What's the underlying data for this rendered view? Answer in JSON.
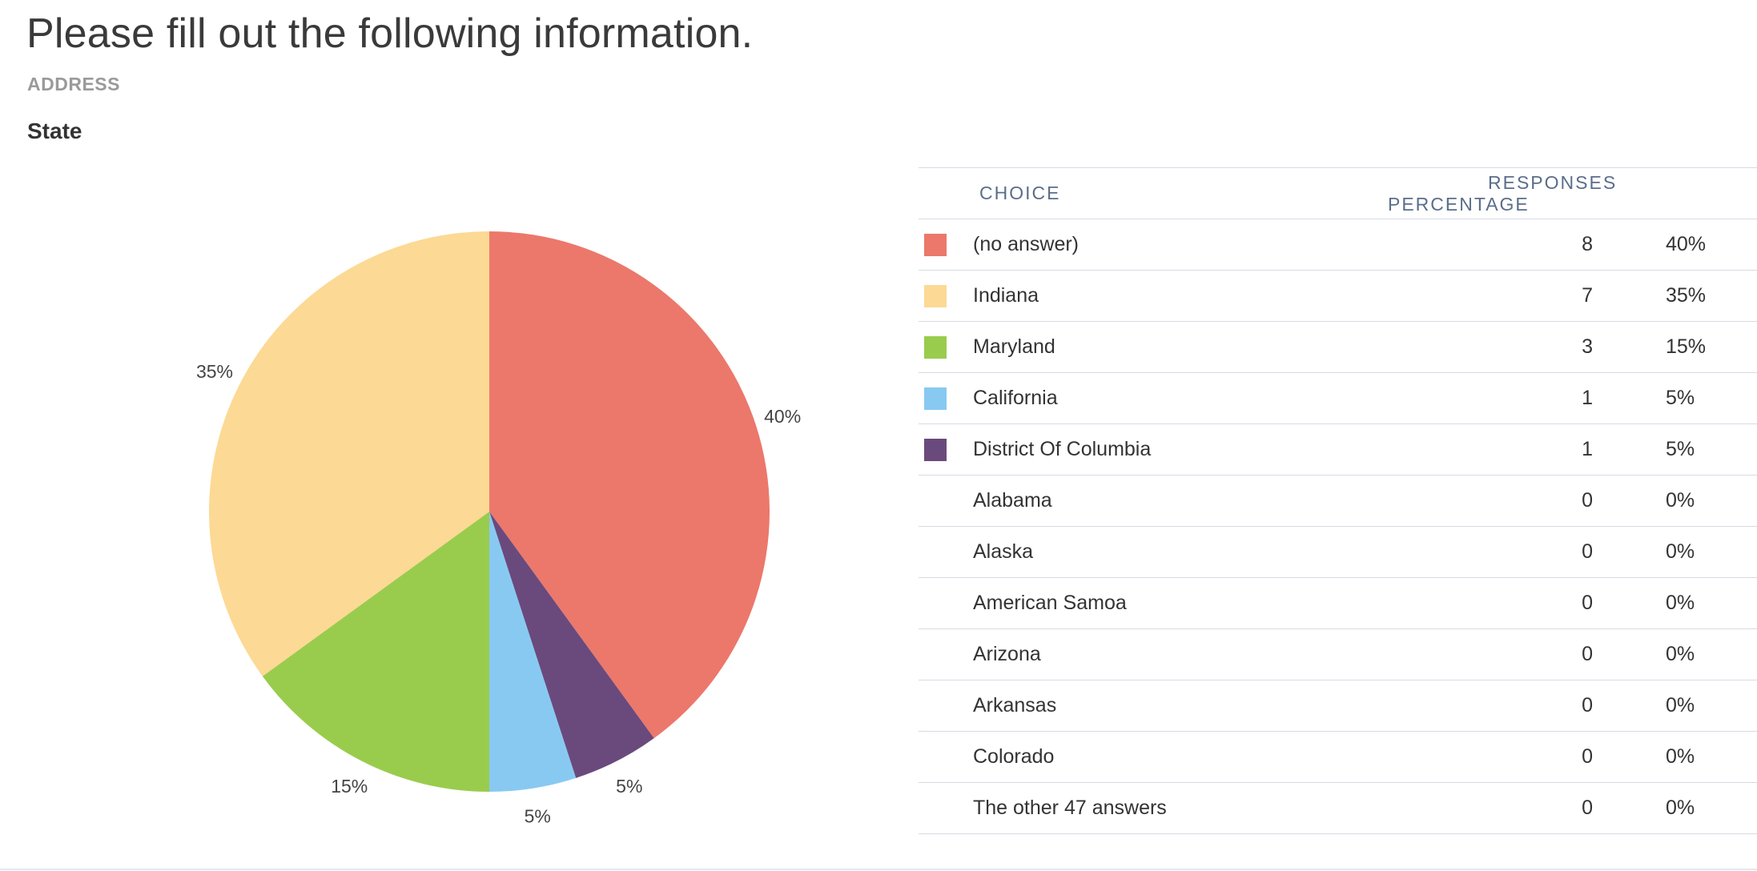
{
  "page": {
    "title": "Please fill out the following information.",
    "section": "ADDRESS",
    "question": "State"
  },
  "table": {
    "headers": {
      "choice": "CHOICE",
      "responses": "RESPONSES",
      "percentage": "PERCENTAGE"
    },
    "rows": [
      {
        "choice": "(no answer)",
        "responses": "8",
        "percentage": "40%",
        "color": "#EB786B"
      },
      {
        "choice": "Indiana",
        "responses": "7",
        "percentage": "35%",
        "color": "#FCD994"
      },
      {
        "choice": "Maryland",
        "responses": "3",
        "percentage": "15%",
        "color": "#99CC4D"
      },
      {
        "choice": "California",
        "responses": "1",
        "percentage": "5%",
        "color": "#88C9F2"
      },
      {
        "choice": "District Of Columbia",
        "responses": "1",
        "percentage": "5%",
        "color": "#6A4A7C"
      },
      {
        "choice": "Alabama",
        "responses": "0",
        "percentage": "0%",
        "color": ""
      },
      {
        "choice": "Alaska",
        "responses": "0",
        "percentage": "0%",
        "color": ""
      },
      {
        "choice": "American Samoa",
        "responses": "0",
        "percentage": "0%",
        "color": ""
      },
      {
        "choice": "Arizona",
        "responses": "0",
        "percentage": "0%",
        "color": ""
      },
      {
        "choice": "Arkansas",
        "responses": "0",
        "percentage": "0%",
        "color": ""
      },
      {
        "choice": "Colorado",
        "responses": "0",
        "percentage": "0%",
        "color": ""
      },
      {
        "choice": "The other 47 answers",
        "responses": "0",
        "percentage": "0%",
        "color": ""
      }
    ]
  },
  "chart_data": {
    "type": "pie",
    "categories": [
      "(no answer)",
      "District Of Columbia",
      "California",
      "Maryland",
      "Indiana"
    ],
    "values": [
      40,
      5,
      5,
      15,
      35
    ],
    "labels": [
      "40%",
      "5%",
      "5%",
      "15%",
      "35%"
    ],
    "colors": [
      "#EB786B",
      "#6A4A7C",
      "#88C9F2",
      "#99CC4D",
      "#FCD994"
    ]
  }
}
